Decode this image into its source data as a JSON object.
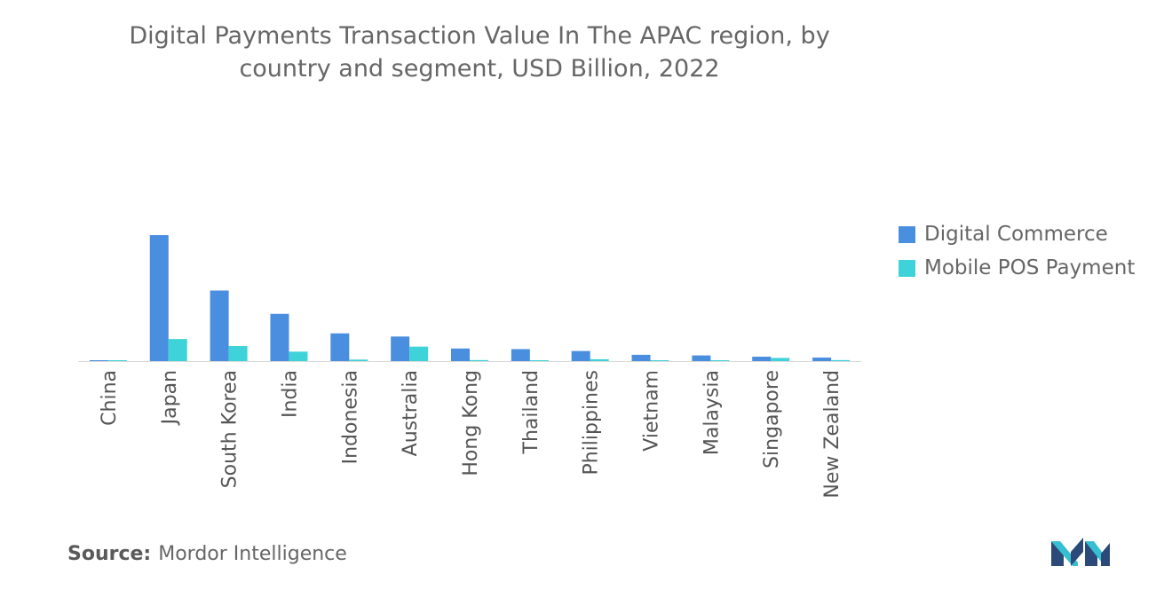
{
  "chart_data": {
    "type": "bar",
    "title": "Digital Payments Transaction Value In The APAC region, by country and segment, USD Billion, 2022",
    "title_lines": [
      "Digital Payments Transaction Value In The APAC region, by",
      "country and segment, USD Billion, 2022"
    ],
    "categories": [
      "China",
      "Japan",
      "South Korea",
      "India",
      "Indonesia",
      "Australia",
      "Hong Kong",
      "Thailand",
      "Philippines",
      "Vietnam",
      "Malaysia",
      "Singapore",
      "New Zealand"
    ],
    "series": [
      {
        "name": "Digital Commerce",
        "color": "#4a8ee0",
        "values": [
          0.5,
          100,
          56,
          37.5,
          22,
          19.5,
          10,
          9.5,
          8,
          5,
          4.5,
          3.5,
          2.8
        ]
      },
      {
        "name": "Mobile POS Payment",
        "color": "#3dd3d9",
        "values": [
          0.3,
          17.5,
          12,
          7.5,
          1.2,
          11.5,
          0.8,
          0.7,
          1.5,
          0.6,
          0.6,
          2.5,
          0.8
        ]
      }
    ],
    "ylim": [
      0,
      100
    ],
    "xlabel": "",
    "ylabel": "",
    "grid": false,
    "legend_position": "right"
  },
  "source": {
    "label": "Source:",
    "value": "Mordor Intelligence"
  },
  "logo": {
    "icon": "mordor-intelligence-logo",
    "colors": [
      "#2b4a7a",
      "#35bfd0"
    ]
  }
}
